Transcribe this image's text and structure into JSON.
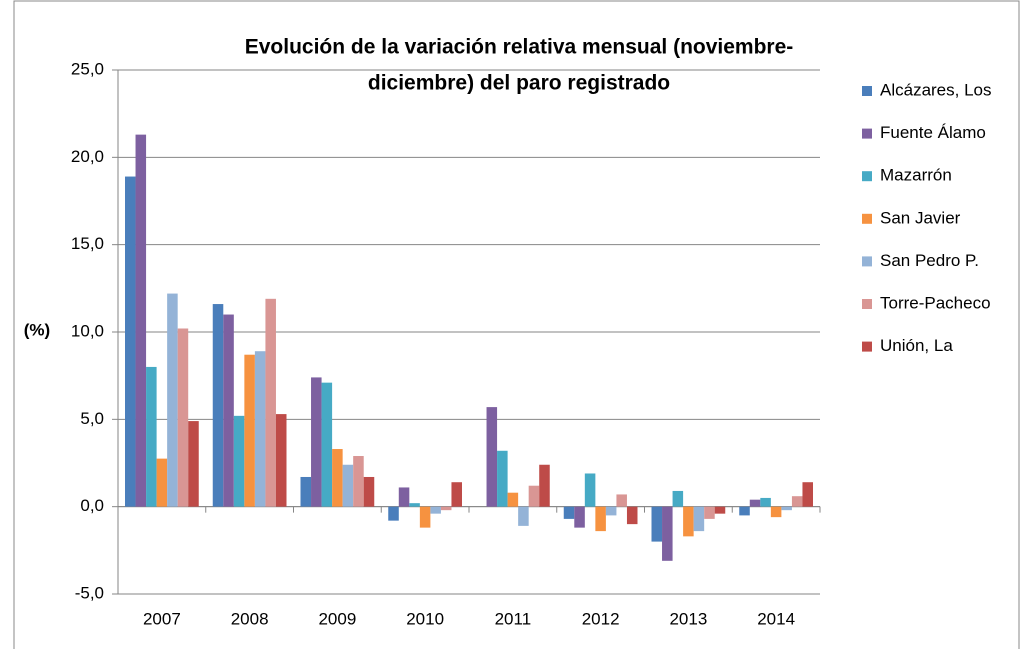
{
  "chart_data": {
    "type": "bar",
    "title": [
      "Evolución de la variación relativa mensual (noviembre-",
      "diciembre) del paro registrado"
    ],
    "ylabel": "(%)",
    "categories": [
      "2007",
      "2008",
      "2009",
      "2010",
      "2011",
      "2012",
      "2013",
      "2014"
    ],
    "series": [
      {
        "name": "Alcázares, Los",
        "color": "#4a7ebb",
        "values": [
          18.9,
          11.6,
          1.7,
          -0.8,
          0,
          -0.7,
          -2.0,
          -0.5
        ]
      },
      {
        "name": "Fuente Álamo",
        "color": "#7d60a0",
        "values": [
          21.3,
          11.0,
          7.4,
          1.1,
          5.7,
          -1.2,
          -3.1,
          0.4
        ]
      },
      {
        "name": "Mazarrón",
        "color": "#46aac5",
        "values": [
          8.0,
          5.2,
          7.1,
          0.2,
          3.2,
          1.9,
          0.9,
          0.5
        ]
      },
      {
        "name": "San Javier",
        "color": "#f69240",
        "values": [
          2.75,
          8.7,
          3.3,
          -1.2,
          0.8,
          -1.4,
          -1.7,
          -0.6
        ]
      },
      {
        "name": "San Pedro P.",
        "color": "#94b3d7",
        "values": [
          12.2,
          8.9,
          2.4,
          -0.4,
          -1.1,
          -0.5,
          -1.4,
          -0.2
        ]
      },
      {
        "name": "Torre-Pacheco",
        "color": "#d99694",
        "values": [
          10.2,
          11.9,
          2.9,
          -0.2,
          1.2,
          0.7,
          -0.7,
          0.6
        ]
      },
      {
        "name": "Unión, La",
        "color": "#be4b48",
        "values": [
          4.9,
          5.3,
          1.7,
          1.4,
          2.4,
          -1.0,
          -0.4,
          1.4
        ]
      }
    ],
    "ylim": [
      -5,
      25
    ],
    "yticks": [
      {
        "value": -5,
        "label": "-5,0"
      },
      {
        "value": 0,
        "label": "0,0"
      },
      {
        "value": 5,
        "label": "5,0"
      },
      {
        "value": 10,
        "label": "10,0"
      },
      {
        "value": 15,
        "label": "15,0"
      },
      {
        "value": 20,
        "label": "20,0"
      },
      {
        "value": 25,
        "label": "25,0"
      }
    ],
    "grid": true,
    "legend": "right"
  }
}
